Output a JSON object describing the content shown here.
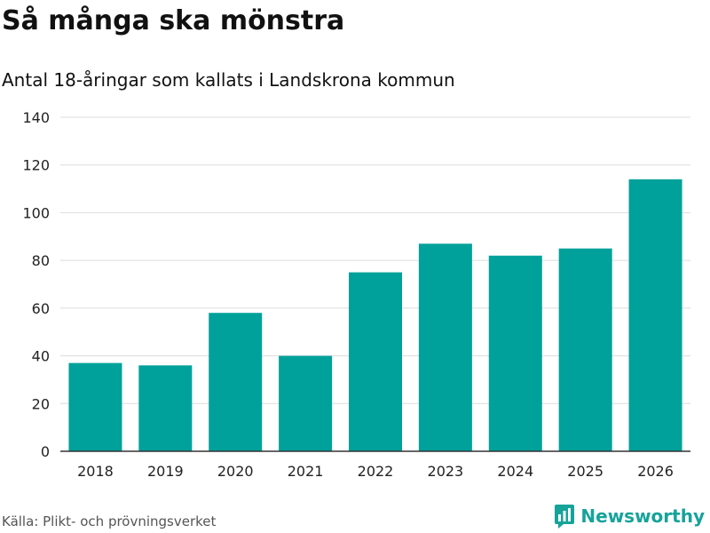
{
  "title": "Så många ska mönstra",
  "subtitle": "Antal 18-åringar som kallats i Landskrona kommun",
  "source": "Källa: Plikt- och prövningsverket",
  "brand": "Newsworthy",
  "colors": {
    "bar": "#00A19A",
    "grid": "#dcdcdc",
    "axis": "#333333",
    "brand": "#16A39A"
  },
  "chart_data": {
    "type": "bar",
    "categories": [
      "2018",
      "2019",
      "2020",
      "2021",
      "2022",
      "2023",
      "2024",
      "2025",
      "2026"
    ],
    "values": [
      37,
      36,
      58,
      40,
      75,
      87,
      82,
      85,
      114
    ],
    "ylim": [
      0,
      140
    ],
    "yticks": [
      0,
      20,
      40,
      60,
      80,
      100,
      120,
      140
    ],
    "xlabel": "",
    "ylabel": "",
    "grid": true
  }
}
